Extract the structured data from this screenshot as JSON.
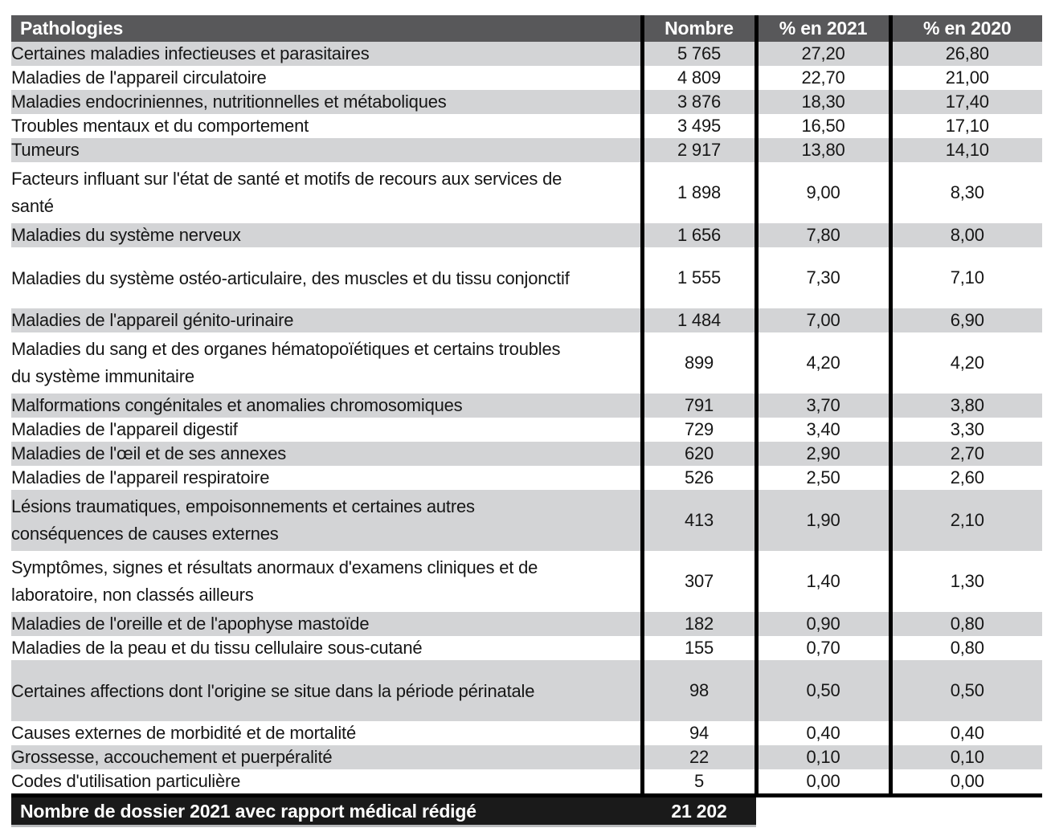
{
  "colors": {
    "header_bg": "#58585A",
    "shaded_row": "#D3D4D6",
    "footer_bg": "#1A1A1A",
    "text": "#161616",
    "grid_line": "#000000"
  },
  "table": {
    "columns": [
      "Pathologies",
      "Nombre",
      "% en 2021",
      "% en 2020"
    ],
    "rows": [
      {
        "pathology": "Certaines maladies infectieuses et parasitaires",
        "nombre": "5 765",
        "pct_2021": "27,20",
        "pct_2020": "26,80"
      },
      {
        "pathology": "Maladies de l'appareil circulatoire",
        "nombre": "4 809",
        "pct_2021": "22,70",
        "pct_2020": "21,00"
      },
      {
        "pathology": "Maladies endocriniennes, nutritionnelles et métaboliques",
        "nombre": "3 876",
        "pct_2021": "18,30",
        "pct_2020": "17,40"
      },
      {
        "pathology": "Troubles mentaux et du comportement",
        "nombre": "3 495",
        "pct_2021": "16,50",
        "pct_2020": "17,10"
      },
      {
        "pathology": "Tumeurs",
        "nombre": "2 917",
        "pct_2021": "13,80",
        "pct_2020": "14,10"
      },
      {
        "pathology": "Facteurs influant sur l'état de santé et motifs de recours aux services de santé",
        "nombre": "1 898",
        "pct_2021": "9,00",
        "pct_2020": "8,30"
      },
      {
        "pathology": "Maladies du système nerveux",
        "nombre": "1 656",
        "pct_2021": "7,80",
        "pct_2020": "8,00"
      },
      {
        "pathology": "Maladies du système ostéo-articulaire, des muscles et du tissu conjonctif",
        "nombre": "1 555",
        "pct_2021": "7,30",
        "pct_2020": "7,10"
      },
      {
        "pathology": "Maladies de l'appareil génito-urinaire",
        "nombre": "1 484",
        "pct_2021": "7,00",
        "pct_2020": "6,90"
      },
      {
        "pathology": "Maladies du sang et des organes hématopoïétiques et certains troubles du système immunitaire",
        "nombre": "899",
        "pct_2021": "4,20",
        "pct_2020": "4,20"
      },
      {
        "pathology": "Malformations congénitales et anomalies chromosomiques",
        "nombre": "791",
        "pct_2021": "3,70",
        "pct_2020": "3,80"
      },
      {
        "pathology": "Maladies de l'appareil digestif",
        "nombre": "729",
        "pct_2021": "3,40",
        "pct_2020": "3,30"
      },
      {
        "pathology": "Maladies de l'œil et de ses annexes",
        "nombre": "620",
        "pct_2021": "2,90",
        "pct_2020": "2,70"
      },
      {
        "pathology": "Maladies de l'appareil respiratoire",
        "nombre": "526",
        "pct_2021": "2,50",
        "pct_2020": "2,60"
      },
      {
        "pathology": "Lésions traumatiques, empoisonnements et certaines autres conséquences de causes externes",
        "nombre": "413",
        "pct_2021": "1,90",
        "pct_2020": "2,10"
      },
      {
        "pathology": "Symptômes, signes et résultats anormaux d'examens cliniques et de laboratoire, non classés ailleurs",
        "nombre": "307",
        "pct_2021": "1,40",
        "pct_2020": "1,30"
      },
      {
        "pathology": "Maladies de l'oreille et de l'apophyse mastoïde",
        "nombre": "182",
        "pct_2021": "0,90",
        "pct_2020": "0,80"
      },
      {
        "pathology": "Maladies de la peau et du tissu cellulaire sous-cutané",
        "nombre": "155",
        "pct_2021": "0,70",
        "pct_2020": "0,80"
      },
      {
        "pathology": "Certaines affections dont l'origine se situe dans la période périnatale",
        "nombre": "98",
        "pct_2021": "0,50",
        "pct_2020": "0,50"
      },
      {
        "pathology": "Causes externes de morbidité et de mortalité",
        "nombre": "94",
        "pct_2021": "0,40",
        "pct_2020": "0,40"
      },
      {
        "pathology": "Grossesse, accouchement et puerpéralité",
        "nombre": "22",
        "pct_2021": "0,10",
        "pct_2020": "0,10"
      },
      {
        "pathology": "Codes d'utilisation particulière",
        "nombre": "5",
        "pct_2021": "0,00",
        "pct_2020": "0,00"
      }
    ],
    "footer": {
      "label": "Nombre de dossier 2021 avec rapport médical rédigé",
      "total": "21 202"
    }
  }
}
